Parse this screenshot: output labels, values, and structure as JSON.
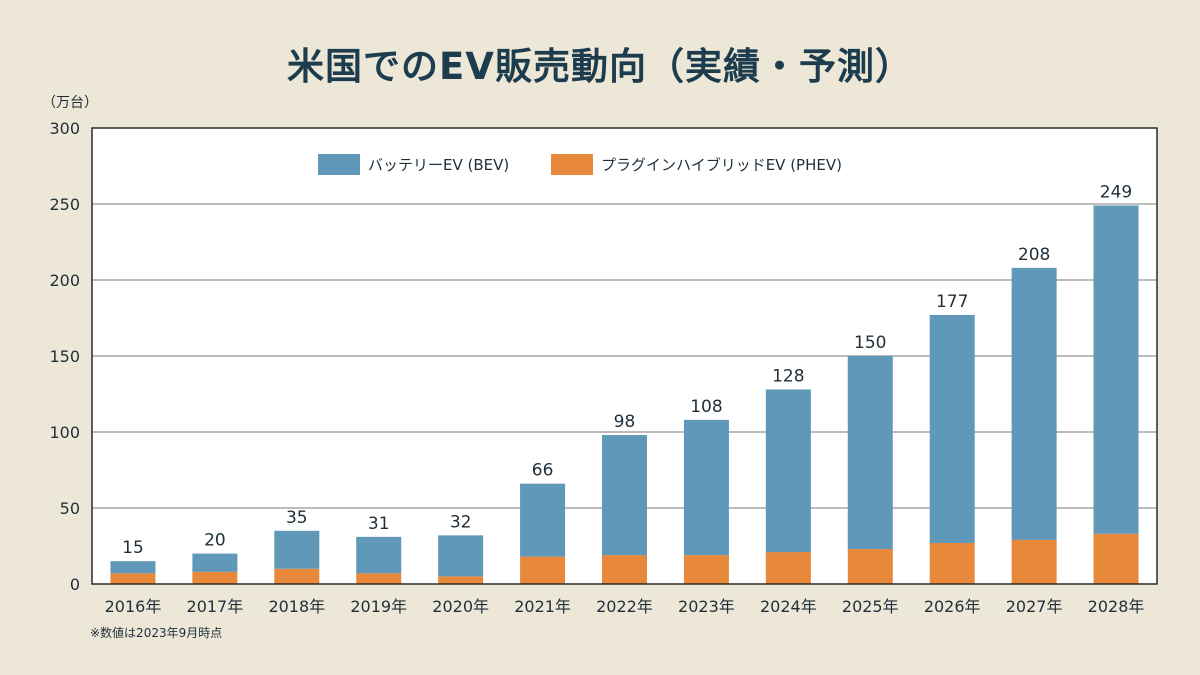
{
  "chart_data": {
    "type": "bar",
    "stacked": true,
    "title": "米国でのEV販売動向（実績・予測）",
    "ylabel": "（万台）",
    "xlabel": "",
    "ylim": [
      0,
      300
    ],
    "yticks": [
      0,
      50,
      100,
      150,
      200,
      250,
      300
    ],
    "grid": true,
    "legend_position": "top-center",
    "categories": [
      "2016年",
      "2017年",
      "2018年",
      "2019年",
      "2020年",
      "2021年",
      "2022年",
      "2023年",
      "2024年",
      "2025年",
      "2026年",
      "2027年",
      "2028年"
    ],
    "series": [
      {
        "name": "プラグインハイブリッドEV (PHEV)",
        "color": "#e8883a",
        "values": [
          7,
          8,
          10,
          7,
          5,
          18,
          19,
          19,
          21,
          23,
          27,
          29,
          33
        ]
      },
      {
        "name": "バッテリーEV (BEV)",
        "color": "#5f98b9",
        "values": [
          8,
          12,
          25,
          24,
          27,
          48,
          79,
          89,
          107,
          127,
          150,
          179,
          216
        ]
      }
    ],
    "totals": [
      15,
      20,
      35,
      31,
      32,
      66,
      98,
      108,
      128,
      150,
      177,
      208,
      249
    ],
    "footnote": "※数値は2023年9月時点"
  }
}
